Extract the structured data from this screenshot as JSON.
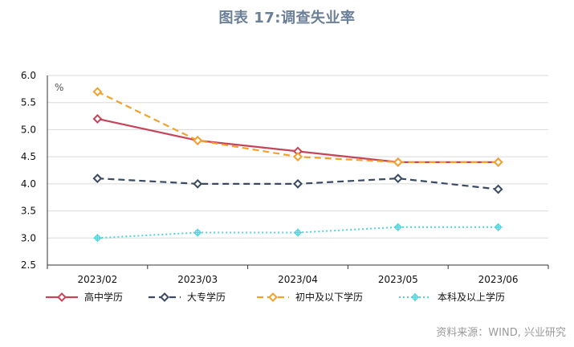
{
  "title": "图表 17:调查失业率",
  "source": "资料来源：WIND, 兴业研究",
  "colors": {
    "title": "#6b7f99",
    "grid": "#d9d9d9",
    "axis": "#333333"
  },
  "chart_data": {
    "type": "line",
    "title": "图表 17:调查失业率",
    "unit_label": "%",
    "categories": [
      "2023/02",
      "2023/03",
      "2023/04",
      "2023/05",
      "2023/06"
    ],
    "ylim": [
      2.5,
      6.0
    ],
    "yticks": [
      "6.0",
      "5.5",
      "5.0",
      "4.5",
      "4.0",
      "3.5",
      "3.0",
      "2.5"
    ],
    "grid": true,
    "legend_position": "bottom",
    "series": [
      {
        "name": "高中学历",
        "values": [
          5.2,
          4.8,
          4.6,
          4.4,
          4.4
        ],
        "color": "#c7435a",
        "style": "solid"
      },
      {
        "name": "大专学历",
        "values": [
          4.1,
          4.0,
          4.0,
          4.1,
          3.9
        ],
        "color": "#3a4a63",
        "style": "dashed"
      },
      {
        "name": "初中及以下学历",
        "values": [
          5.7,
          4.8,
          4.5,
          4.4,
          4.4
        ],
        "color": "#f0a22e",
        "style": "dashed"
      },
      {
        "name": "本科及以上学历",
        "values": [
          3.0,
          3.1,
          3.1,
          3.2,
          3.2
        ],
        "color": "#4fd3dd",
        "style": "dotted"
      }
    ]
  }
}
